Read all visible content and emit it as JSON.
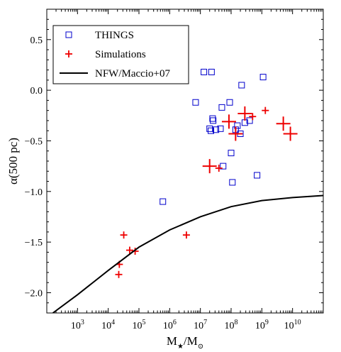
{
  "chart_data": {
    "type": "scatter",
    "x_scale": "log10",
    "xlim": [
      100.0,
      100000000000.0
    ],
    "ylim": [
      -2.2,
      0.8
    ],
    "xlabel_main": "M",
    "xlabel_sub": "★",
    "xlabel_tail": "/M",
    "xlabel_tail_sub": "⊙",
    "ylabel": "α(500 pc)",
    "y_ticks": [
      0.5,
      0.0,
      -0.5,
      -1.0,
      -1.5,
      -2.0
    ],
    "y_tick_labels": [
      "0.5",
      "0.0",
      "−0.5",
      "−1.0",
      "−1.5",
      "−2.0"
    ],
    "x_tick_exponents": [
      3,
      4,
      5,
      6,
      7,
      8,
      9,
      10
    ],
    "x_tick_base": "10",
    "legend_position": "upper-left",
    "legend": [
      {
        "name": "THINGS",
        "marker": "open-square",
        "color": "#0000cc"
      },
      {
        "name": "Simulations",
        "marker": "plus",
        "color": "#ee0000"
      },
      {
        "name": "NFW/Maccio+07",
        "marker": "line",
        "color": "#000000"
      }
    ],
    "series": [
      {
        "name": "THINGS",
        "marker": "open-square",
        "color": "#0000cc",
        "points": [
          {
            "x": 600000.0,
            "y": -1.1
          },
          {
            "x": 7000000.0,
            "y": -0.12
          },
          {
            "x": 13000000.0,
            "y": 0.18
          },
          {
            "x": 23000000.0,
            "y": 0.18
          },
          {
            "x": 20000000.0,
            "y": -0.38
          },
          {
            "x": 22000000.0,
            "y": -0.4
          },
          {
            "x": 25000000.0,
            "y": -0.28
          },
          {
            "x": 26000000.0,
            "y": -0.3
          },
          {
            "x": 32000000.0,
            "y": -0.39
          },
          {
            "x": 45000000.0,
            "y": -0.38
          },
          {
            "x": 50000000.0,
            "y": -0.17
          },
          {
            "x": 55000000.0,
            "y": -0.75
          },
          {
            "x": 90000000.0,
            "y": -0.12
          },
          {
            "x": 100000000.0,
            "y": -0.62
          },
          {
            "x": 110000000.0,
            "y": -0.91
          },
          {
            "x": 140000000.0,
            "y": -0.39
          },
          {
            "x": 160000000.0,
            "y": -0.35
          },
          {
            "x": 220000000.0,
            "y": 0.05
          },
          {
            "x": 200000000.0,
            "y": -0.43
          },
          {
            "x": 280000000.0,
            "y": -0.32
          },
          {
            "x": 400000000.0,
            "y": -0.3
          },
          {
            "x": 700000000.0,
            "y": -0.84
          },
          {
            "x": 1100000000.0,
            "y": 0.13
          }
        ]
      },
      {
        "name": "Simulations",
        "marker": "plus",
        "color": "#ee0000",
        "points": [
          {
            "x": 23000.0,
            "y": -1.72,
            "size": "small"
          },
          {
            "x": 22000.0,
            "y": -1.82,
            "size": "small"
          },
          {
            "x": 32000.0,
            "y": -1.43,
            "size": "small"
          },
          {
            "x": 50000.0,
            "y": -1.58,
            "size": "small"
          },
          {
            "x": 75000.0,
            "y": -1.59,
            "size": "small"
          },
          {
            "x": 3500000.0,
            "y": -1.43,
            "size": "small"
          },
          {
            "x": 20000000.0,
            "y": -0.75,
            "size": "large"
          },
          {
            "x": 40000000.0,
            "y": -0.77,
            "size": "small"
          },
          {
            "x": 85000000.0,
            "y": -0.31,
            "size": "large"
          },
          {
            "x": 140000000.0,
            "y": -0.43,
            "size": "large"
          },
          {
            "x": 280000000.0,
            "y": -0.23,
            "size": "large"
          },
          {
            "x": 500000000.0,
            "y": -0.26,
            "size": "small"
          },
          {
            "x": 1300000000.0,
            "y": -0.2,
            "size": "small"
          },
          {
            "x": 5000000000.0,
            "y": -0.33,
            "size": "large"
          },
          {
            "x": 8500000000.0,
            "y": -0.43,
            "size": "large"
          }
        ]
      },
      {
        "name": "NFW/Maccio+07",
        "marker": "line",
        "color": "#000000",
        "points": [
          {
            "x": 158.0,
            "y": -2.2
          },
          {
            "x": 1000.0,
            "y": -2.02
          },
          {
            "x": 10000.0,
            "y": -1.78
          },
          {
            "x": 100000.0,
            "y": -1.55
          },
          {
            "x": 1000000.0,
            "y": -1.38
          },
          {
            "x": 10000000.0,
            "y": -1.25
          },
          {
            "x": 100000000.0,
            "y": -1.15
          },
          {
            "x": 1000000000.0,
            "y": -1.09
          },
          {
            "x": 10000000000.0,
            "y": -1.06
          },
          {
            "x": 100000000000.0,
            "y": -1.04
          }
        ]
      }
    ]
  }
}
